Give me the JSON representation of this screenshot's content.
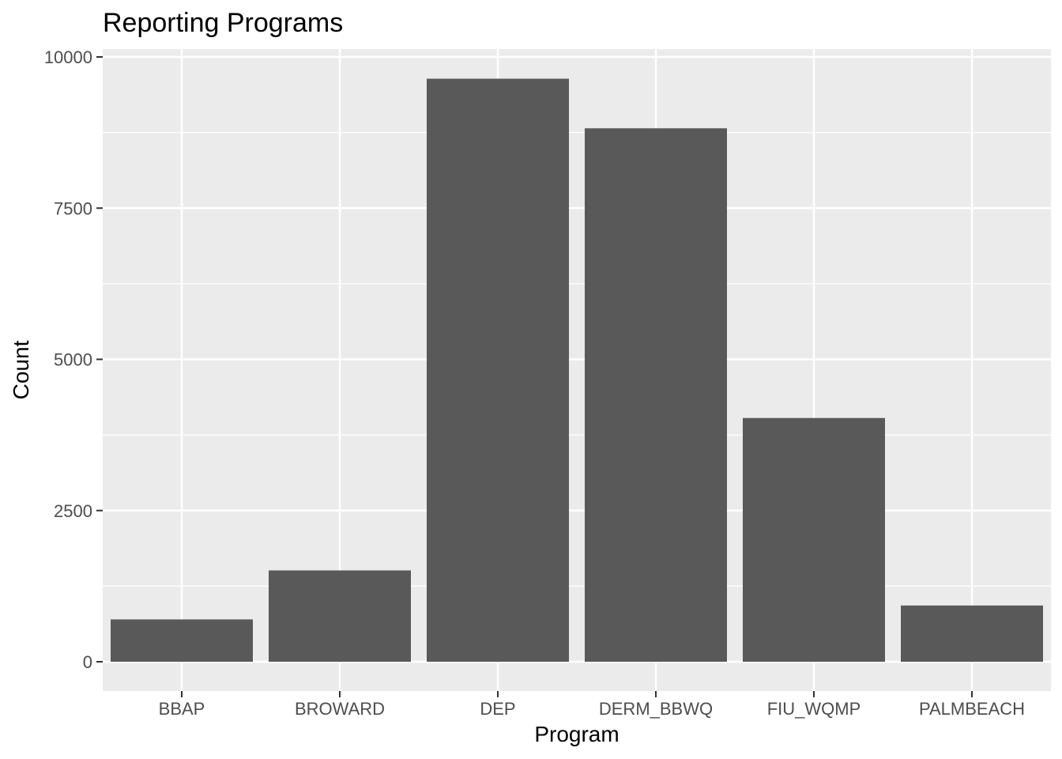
{
  "chart_data": {
    "type": "bar",
    "title": "Reporting Programs",
    "xlabel": "Program",
    "ylabel": "Count",
    "categories": [
      "BBAP",
      "BROWARD",
      "DEP",
      "DERM_BBWQ",
      "FIU_WQMP",
      "PALMBEACH"
    ],
    "values": [
      700,
      1510,
      9640,
      8820,
      4030,
      930
    ],
    "ylim": [
      0,
      10000
    ],
    "yticks": [
      0,
      2500,
      5000,
      7500,
      10000
    ],
    "ytick_labels": [
      "0",
      "2500",
      "5000",
      "7500",
      "10000"
    ],
    "grid": true,
    "colors": {
      "bar": "#595959",
      "panel": "#ebebeb",
      "grid": "#ffffff",
      "tick": "#333333"
    }
  }
}
